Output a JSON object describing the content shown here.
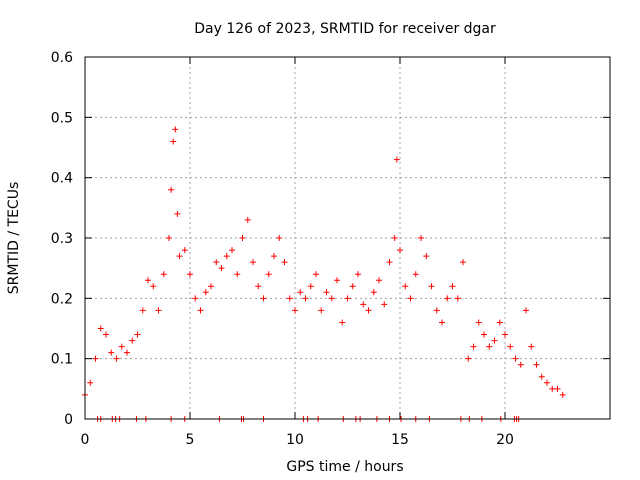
{
  "chart_data": {
    "type": "scatter",
    "title": "Day 126 of 2023, SRMTID for receiver dgar",
    "xlabel": "GPS time / hours",
    "ylabel": "SRMTID / TECUs",
    "xlim": [
      0,
      25
    ],
    "ylim": [
      0,
      0.6
    ],
    "xticks": [
      0,
      5,
      10,
      15,
      20
    ],
    "xtick_labels": [
      "0",
      "5",
      "10",
      "15",
      "20"
    ],
    "yticks": [
      0,
      0.1,
      0.2,
      0.3,
      0.4,
      0.5,
      0.6
    ],
    "ytick_labels": [
      "0",
      "0.1",
      "0.2",
      "0.3",
      "0.4",
      "0.5",
      "0.6"
    ],
    "grid": true,
    "marker": "+",
    "color": "#ff0000",
    "series": [
      {
        "name": "SRMTID",
        "x": [
          0.0,
          0.25,
          0.5,
          0.75,
          1.0,
          1.25,
          1.5,
          1.75,
          2.0,
          2.25,
          2.5,
          2.75,
          3.0,
          3.25,
          3.5,
          3.75,
          4.0,
          4.1,
          4.2,
          4.3,
          4.4,
          4.5,
          4.75,
          5.0,
          5.25,
          5.5,
          5.75,
          6.0,
          6.25,
          6.5,
          6.75,
          7.0,
          7.25,
          7.5,
          7.75,
          8.0,
          8.25,
          8.5,
          8.75,
          9.0,
          9.25,
          9.5,
          9.75,
          10.0,
          10.25,
          10.5,
          10.75,
          11.0,
          11.25,
          11.5,
          11.75,
          12.0,
          12.25,
          12.5,
          12.75,
          13.0,
          13.25,
          13.5,
          13.75,
          14.0,
          14.25,
          14.5,
          14.75,
          14.85,
          15.0,
          15.25,
          15.5,
          15.75,
          16.0,
          16.25,
          16.5,
          16.75,
          17.0,
          17.25,
          17.5,
          17.75,
          18.0,
          18.25,
          18.5,
          18.75,
          19.0,
          19.25,
          19.5,
          19.75,
          20.0,
          20.25,
          20.5,
          20.75,
          21.0,
          21.25,
          21.5,
          21.75,
          22.0,
          22.25,
          22.5,
          22.75
        ],
        "y": [
          0.04,
          0.06,
          0.1,
          0.15,
          0.14,
          0.11,
          0.1,
          0.12,
          0.11,
          0.13,
          0.14,
          0.18,
          0.23,
          0.22,
          0.18,
          0.24,
          0.3,
          0.38,
          0.46,
          0.48,
          0.34,
          0.27,
          0.28,
          0.24,
          0.2,
          0.18,
          0.21,
          0.22,
          0.26,
          0.25,
          0.27,
          0.28,
          0.24,
          0.3,
          0.33,
          0.26,
          0.22,
          0.2,
          0.24,
          0.27,
          0.3,
          0.26,
          0.2,
          0.18,
          0.21,
          0.2,
          0.22,
          0.24,
          0.18,
          0.21,
          0.2,
          0.23,
          0.16,
          0.2,
          0.22,
          0.24,
          0.19,
          0.18,
          0.21,
          0.23,
          0.19,
          0.26,
          0.3,
          0.43,
          0.28,
          0.22,
          0.2,
          0.24,
          0.3,
          0.27,
          0.22,
          0.18,
          0.16,
          0.2,
          0.22,
          0.2,
          0.26,
          0.1,
          0.12,
          0.16,
          0.14,
          0.12,
          0.13,
          0.16,
          0.14,
          0.12,
          0.1,
          0.09,
          0.18,
          0.12,
          0.09,
          0.07,
          0.06,
          0.05,
          0.05,
          0.04
        ]
      }
    ],
    "zero_markers_x": [
      0.6,
      0.75,
      1.3,
      1.45,
      1.65,
      2.45,
      2.9,
      4.1,
      4.75,
      6.4,
      7.45,
      7.55,
      8.5,
      10.4,
      10.6,
      11.1,
      12.3,
      12.9,
      13.1,
      13.9,
      14.5,
      15.05,
      15.75,
      16.4,
      17.9,
      18.3,
      18.9,
      19.8,
      20.45,
      20.55,
      20.65
    ]
  }
}
